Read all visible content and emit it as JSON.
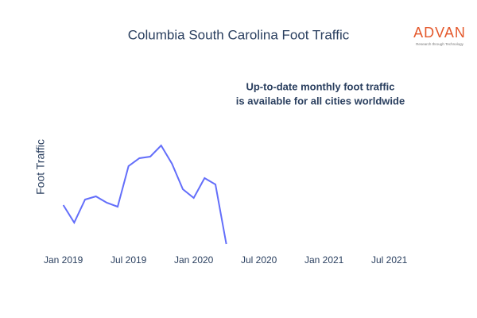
{
  "chart_data": {
    "type": "line",
    "title": "Columbia South Carolina Foot Traffic",
    "ylabel": "Foot Traffic",
    "annotation": [
      "Up-to-date monthly foot traffic",
      "is available for all cities worldwide"
    ],
    "logo": {
      "name": "ADVAN",
      "tagline": "Research through Technology"
    },
    "x": [
      "2019-01",
      "2019-02",
      "2019-03",
      "2019-04",
      "2019-05",
      "2019-06",
      "2019-07",
      "2019-08",
      "2019-09",
      "2019-10",
      "2019-11",
      "2019-12",
      "2020-01",
      "2020-02",
      "2020-03",
      "2020-04"
    ],
    "series": [
      {
        "name": "Foot Traffic",
        "color": "#636efa",
        "values": [
          57,
          35,
          64,
          68,
          60,
          55,
          106,
          116,
          118,
          132,
          109,
          77,
          66,
          91,
          83,
          8
        ]
      }
    ],
    "xlim": [
      "2018-12",
      "2021-09"
    ],
    "xticks": [
      {
        "value": "2019-01",
        "label": "Jan 2019"
      },
      {
        "value": "2019-07",
        "label": "Jul 2019"
      },
      {
        "value": "2020-01",
        "label": "Jan 2020"
      },
      {
        "value": "2020-07",
        "label": "Jul 2020"
      },
      {
        "value": "2021-01",
        "label": "Jan 2021"
      },
      {
        "value": "2021-07",
        "label": "Jul 2021"
      }
    ],
    "ylim": [
      0,
      150
    ],
    "grid": false
  }
}
